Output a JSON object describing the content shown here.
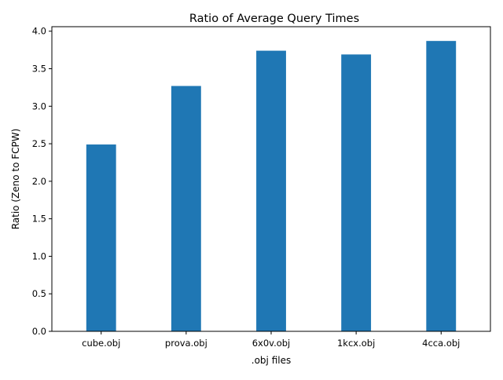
{
  "chart_data": {
    "type": "bar",
    "title": "Ratio of Average Query Times",
    "xlabel": ".obj files",
    "ylabel": "Ratio (Zeno to FCPW)",
    "categories": [
      "cube.obj",
      "prova.obj",
      "6x0v.obj",
      "1kcx.obj",
      "4cca.obj"
    ],
    "values": [
      2.49,
      3.27,
      3.74,
      3.69,
      3.87
    ],
    "ylim": [
      0,
      4.06
    ],
    "yticks": [
      "0.0",
      "0.5",
      "1.0",
      "1.5",
      "2.0",
      "2.5",
      "3.0",
      "3.5",
      "4.0"
    ],
    "bar_color": "#1f77b4",
    "grid": false,
    "legend": "none"
  }
}
